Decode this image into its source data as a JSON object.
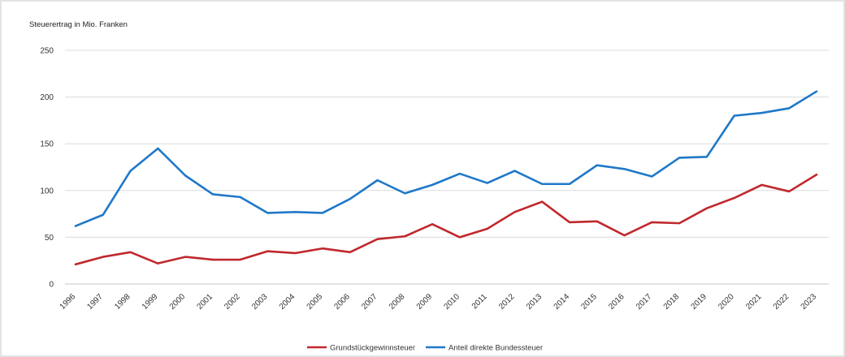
{
  "chart_data": {
    "type": "line",
    "ylabel": "Steuerertrag in Mio. Franken",
    "xlabel": "",
    "ylim": [
      0,
      250
    ],
    "yticks": [
      0,
      50,
      100,
      150,
      200,
      250
    ],
    "grid": true,
    "legend_position": "bottom-center",
    "x": [
      "1996",
      "1997",
      "1998",
      "1999",
      "2000",
      "2001",
      "2002",
      "2003",
      "2004",
      "2005",
      "2006",
      "2007",
      "2008",
      "2009",
      "2010",
      "2011",
      "2012",
      "2013",
      "2014",
      "2015",
      "2016",
      "2017",
      "2018",
      "2019",
      "2020",
      "2021",
      "2022",
      "2023"
    ],
    "series": [
      {
        "name": "Grundstückgewinnsteuer",
        "color": "#c0282d",
        "values": [
          21,
          29,
          34,
          22,
          29,
          26,
          26,
          35,
          33,
          38,
          34,
          48,
          51,
          64,
          50,
          59,
          77,
          88,
          66,
          67,
          52,
          66,
          65,
          81,
          92,
          106,
          99,
          117
        ]
      },
      {
        "name": "Anteil direkte Bundessteuer",
        "color": "#1f78c8",
        "values": [
          62,
          74,
          121,
          145,
          116,
          96,
          93,
          76,
          77,
          76,
          91,
          111,
          97,
          106,
          118,
          108,
          121,
          107,
          107,
          127,
          123,
          115,
          135,
          136,
          180,
          183,
          188,
          206
        ]
      }
    ]
  }
}
